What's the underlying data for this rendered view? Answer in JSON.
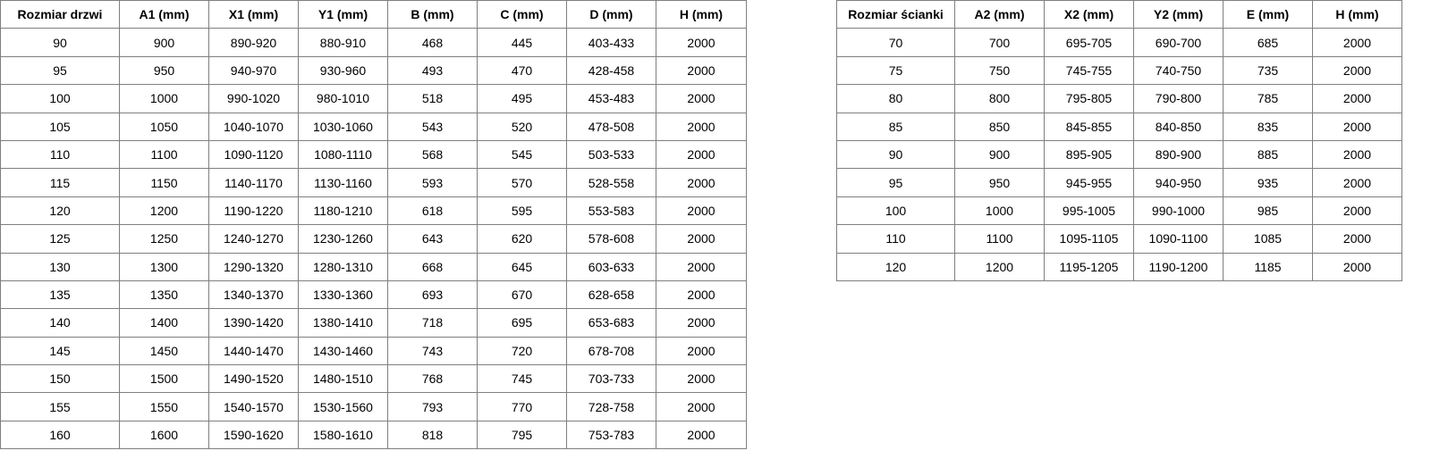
{
  "doors_table": {
    "headers": [
      "Rozmiar drzwi",
      "A1 (mm)",
      "X1 (mm)",
      "Y1 (mm)",
      "B (mm)",
      "C (mm)",
      "D (mm)",
      "H (mm)"
    ],
    "rows": [
      [
        "90",
        "900",
        "890-920",
        "880-910",
        "468",
        "445",
        "403-433",
        "2000"
      ],
      [
        "95",
        "950",
        "940-970",
        "930-960",
        "493",
        "470",
        "428-458",
        "2000"
      ],
      [
        "100",
        "1000",
        "990-1020",
        "980-1010",
        "518",
        "495",
        "453-483",
        "2000"
      ],
      [
        "105",
        "1050",
        "1040-1070",
        "1030-1060",
        "543",
        "520",
        "478-508",
        "2000"
      ],
      [
        "110",
        "1100",
        "1090-1120",
        "1080-1110",
        "568",
        "545",
        "503-533",
        "2000"
      ],
      [
        "115",
        "1150",
        "1140-1170",
        "1130-1160",
        "593",
        "570",
        "528-558",
        "2000"
      ],
      [
        "120",
        "1200",
        "1190-1220",
        "1180-1210",
        "618",
        "595",
        "553-583",
        "2000"
      ],
      [
        "125",
        "1250",
        "1240-1270",
        "1230-1260",
        "643",
        "620",
        "578-608",
        "2000"
      ],
      [
        "130",
        "1300",
        "1290-1320",
        "1280-1310",
        "668",
        "645",
        "603-633",
        "2000"
      ],
      [
        "135",
        "1350",
        "1340-1370",
        "1330-1360",
        "693",
        "670",
        "628-658",
        "2000"
      ],
      [
        "140",
        "1400",
        "1390-1420",
        "1380-1410",
        "718",
        "695",
        "653-683",
        "2000"
      ],
      [
        "145",
        "1450",
        "1440-1470",
        "1430-1460",
        "743",
        "720",
        "678-708",
        "2000"
      ],
      [
        "150",
        "1500",
        "1490-1520",
        "1480-1510",
        "768",
        "745",
        "703-733",
        "2000"
      ],
      [
        "155",
        "1550",
        "1540-1570",
        "1530-1560",
        "793",
        "770",
        "728-758",
        "2000"
      ],
      [
        "160",
        "1600",
        "1590-1620",
        "1580-1610",
        "818",
        "795",
        "753-783",
        "2000"
      ]
    ]
  },
  "wall_table": {
    "headers": [
      "Rozmiar ścianki",
      "A2 (mm)",
      "X2 (mm)",
      "Y2 (mm)",
      "E (mm)",
      "H (mm)"
    ],
    "rows": [
      [
        "70",
        "700",
        "695-705",
        "690-700",
        "685",
        "2000"
      ],
      [
        "75",
        "750",
        "745-755",
        "740-750",
        "735",
        "2000"
      ],
      [
        "80",
        "800",
        "795-805",
        "790-800",
        "785",
        "2000"
      ],
      [
        "85",
        "850",
        "845-855",
        "840-850",
        "835",
        "2000"
      ],
      [
        "90",
        "900",
        "895-905",
        "890-900",
        "885",
        "2000"
      ],
      [
        "95",
        "950",
        "945-955",
        "940-950",
        "935",
        "2000"
      ],
      [
        "100",
        "1000",
        "995-1005",
        "990-1000",
        "985",
        "2000"
      ],
      [
        "110",
        "1100",
        "1095-1105",
        "1090-1100",
        "1085",
        "2000"
      ],
      [
        "120",
        "1200",
        "1195-1205",
        "1190-1200",
        "1185",
        "2000"
      ]
    ]
  }
}
